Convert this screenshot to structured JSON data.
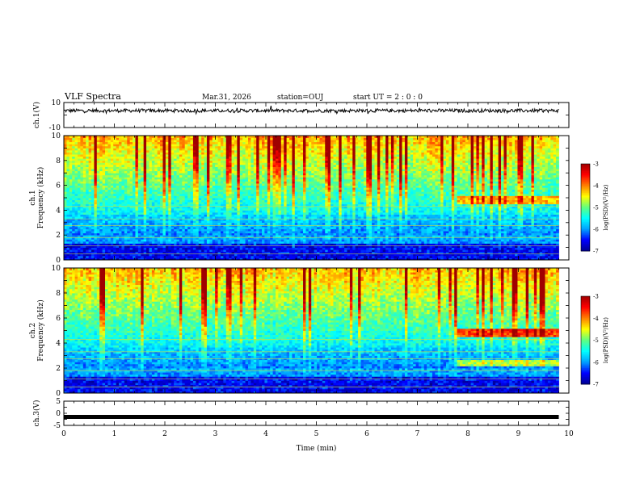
{
  "header": {
    "title": "VLF Spectra",
    "date": "Mar.31, 2026",
    "station": "station=OUJ",
    "start_ut": "start  UT =   2 : 0  : 0"
  },
  "chart_data": [
    {
      "type": "line",
      "panel": "ch1-waveform",
      "ylabel": "ch.1(V)",
      "ylim": [
        -10,
        10
      ],
      "yticks": [
        "10",
        "-10"
      ],
      "xlim": [
        0,
        10
      ],
      "baseline": 3.5,
      "noise_amplitude": 1,
      "color": "#000000"
    },
    {
      "type": "heatmap",
      "panel": "ch1-spectrogram",
      "ylabel": "ch.1\nFrequency  (kHz)",
      "ylim": [
        0,
        10
      ],
      "yticks": [
        "0",
        "2",
        "4",
        "6",
        "8",
        "10"
      ],
      "xlim": [
        0,
        10
      ],
      "data_end_min": 9.8,
      "colorscale": [
        "#000090",
        "#0000ff",
        "#00a0ff",
        "#00ffff",
        "#60ff80",
        "#ffff00",
        "#ff8000",
        "#ff0000",
        "#a00000"
      ],
      "colorbar": {
        "label": "log(PSD)(V²/Hz)",
        "ticks": [
          "-3",
          "-4",
          "-5",
          "-6",
          "-7"
        ],
        "range": [
          -7,
          -3
        ]
      },
      "emission_band_khz": [
        4.5,
        5.2
      ],
      "emission_start_min": 7.8
    },
    {
      "type": "heatmap",
      "panel": "ch2-spectrogram",
      "ylabel": "ch.2\nFrequency  (kHz)",
      "ylim": [
        0,
        10
      ],
      "yticks": [
        "0",
        "2",
        "4",
        "6",
        "8",
        "10"
      ],
      "xlim": [
        0,
        10
      ],
      "data_end_min": 9.8,
      "colorbar": {
        "label": "log(PSD)(V²/Hz)",
        "ticks": [
          "-3",
          "-4",
          "-5",
          "-6",
          "-7"
        ],
        "range": [
          -7,
          -3
        ]
      },
      "emission_band_khz": [
        4.5,
        5.2
      ],
      "emission_start_min": 7.8
    },
    {
      "type": "line",
      "panel": "ch3-waveform",
      "ylabel": "ch.3(V)",
      "ylim": [
        -5,
        5
      ],
      "yticks": [
        "5",
        "0",
        "-5"
      ],
      "xlim": [
        0,
        10
      ],
      "xticks": [
        "0",
        "1",
        "2",
        "3",
        "4",
        "5",
        "6",
        "7",
        "8",
        "9",
        "10"
      ],
      "xlabel": "Time  (min)",
      "baseline": -1.5,
      "color": "#000000"
    }
  ]
}
